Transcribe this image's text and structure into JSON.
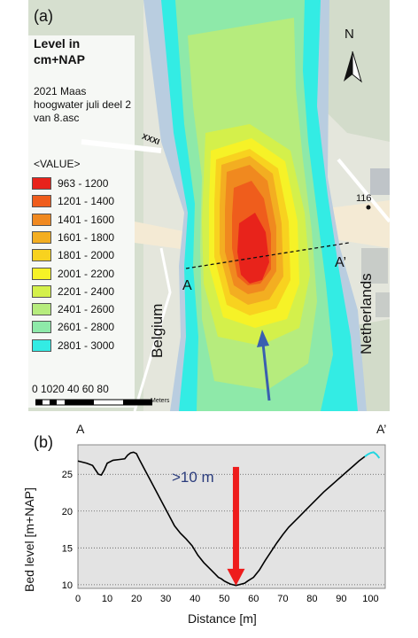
{
  "panel_a": {
    "label": "(a)",
    "legend_title": "Level in cm+NAP",
    "legend_subtitle": "2021 Maas hoogwater juli deel 2 van 8.asc",
    "legend_value_header": "<VALUE>",
    "legend_classes": [
      {
        "range": "963 - 1200",
        "color": "#e8231b"
      },
      {
        "range": "1201 - 1400",
        "color": "#ef5d1c"
      },
      {
        "range": "1401 - 1600",
        "color": "#f0891f"
      },
      {
        "range": "1601 - 1800",
        "color": "#f3ae21"
      },
      {
        "range": "1801 - 2000",
        "color": "#f8d21f"
      },
      {
        "range": "2001 - 2200",
        "color": "#f6f227"
      },
      {
        "range": "2201 - 2400",
        "color": "#d4f04b"
      },
      {
        "range": "2401 - 2600",
        "color": "#b6ec7d"
      },
      {
        "range": "2601 - 2800",
        "color": "#8ee9a9"
      },
      {
        "range": "2801 - 3000",
        "color": "#33ece4"
      }
    ],
    "scale_labels": "0 1020    40    60    80",
    "scale_unit": "Meters",
    "north_label": "N",
    "country_left": "Belgium",
    "country_right": "Netherlands",
    "section_start": "A",
    "section_end": "A’",
    "map_road_label": "116",
    "map_road_number": "XXXI"
  },
  "panel_b": {
    "label": "(b)",
    "start_label": "A",
    "end_label": "A’",
    "annotation": ">10 m",
    "arrow_color": "#ee1c1c"
  },
  "chart_data": {
    "type": "line",
    "title": "",
    "xlabel": "Distance [m]",
    "ylabel": "Bed level [m+NAP]",
    "xlim": [
      0,
      105
    ],
    "ylim": [
      9.5,
      29
    ],
    "xticks": [
      0,
      10,
      20,
      30,
      40,
      50,
      60,
      70,
      80,
      90,
      100
    ],
    "yticks": [
      10,
      15,
      20,
      25
    ],
    "grid": "horizontal dotted",
    "series": [
      {
        "color": "#000000",
        "x": [
          0,
          3,
          5,
          6,
          7,
          8,
          9,
          10,
          12,
          14,
          16,
          17,
          18,
          19,
          20,
          21,
          23,
          25,
          27,
          29,
          31,
          33,
          35,
          37,
          39,
          41,
          43,
          45,
          47,
          48,
          49,
          50,
          51,
          52,
          53,
          54,
          55,
          56,
          57,
          58,
          60,
          62,
          64,
          66,
          68,
          70,
          72,
          74,
          76,
          78,
          80,
          82,
          84,
          86,
          88,
          90,
          92,
          94,
          96,
          98
        ],
        "y": [
          26.8,
          26.5,
          26.2,
          25.6,
          25.0,
          24.9,
          25.6,
          26.5,
          26.9,
          27.0,
          27.1,
          27.6,
          27.9,
          28.0,
          27.8,
          27.0,
          25.5,
          24.0,
          22.5,
          21.0,
          19.5,
          18.0,
          17.0,
          16.2,
          15.3,
          14.0,
          13.0,
          12.2,
          11.4,
          11.0,
          10.8,
          10.5,
          10.3,
          10.1,
          10.0,
          9.9,
          10.0,
          10.1,
          10.2,
          10.5,
          11.0,
          12.0,
          13.3,
          14.5,
          15.7,
          16.8,
          17.8,
          18.6,
          19.4,
          20.2,
          21.0,
          21.8,
          22.6,
          23.3,
          24.0,
          24.7,
          25.4,
          26.1,
          26.8,
          27.4
        ]
      },
      {
        "color": "#22d6e0",
        "x": [
          98,
          99,
          100,
          101,
          102,
          103
        ],
        "y": [
          27.4,
          27.7,
          27.9,
          28.0,
          27.7,
          27.2
        ]
      }
    ],
    "annotation": {
      "text": ">10 m",
      "arrow_x": 54,
      "arrow_y_top": 26,
      "arrow_y_bottom": 10
    }
  }
}
